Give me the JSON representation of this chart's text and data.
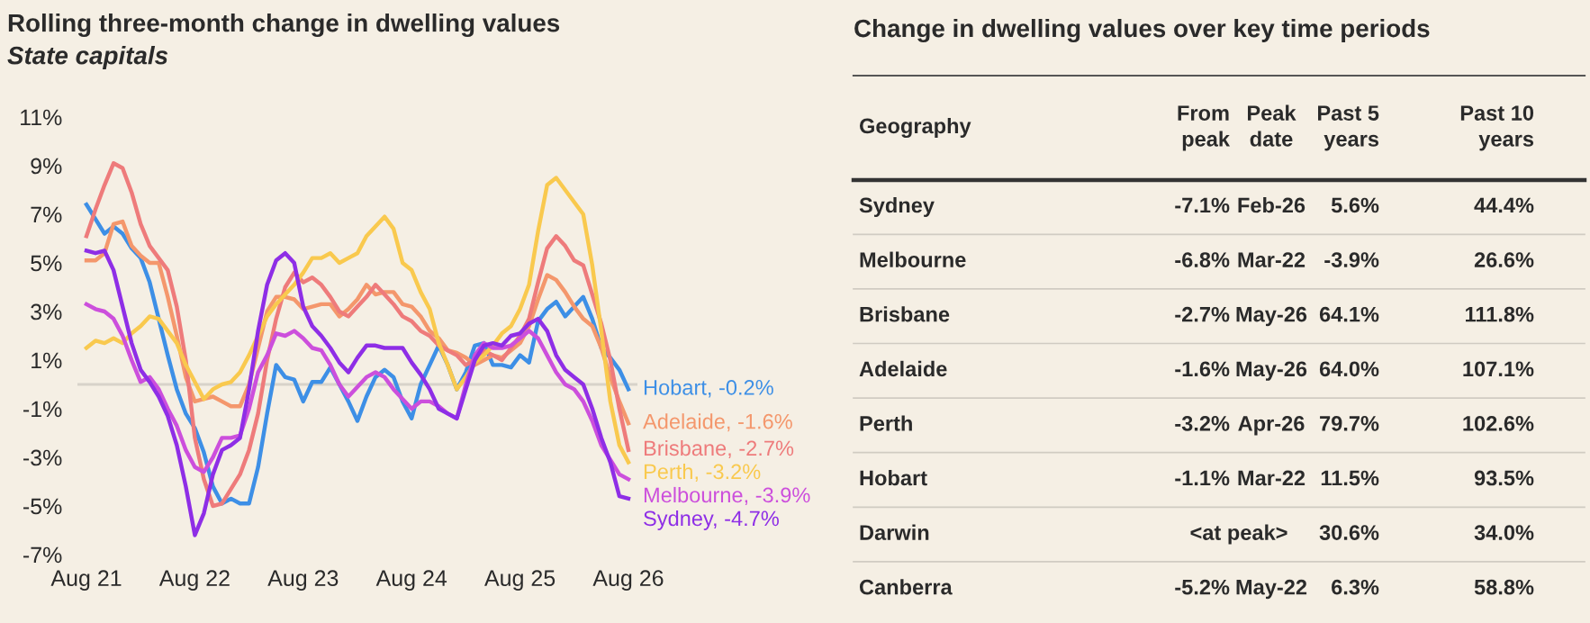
{
  "chart_data": [
    {
      "type": "line",
      "title": "Rolling three-month change in dwelling values",
      "subtitle": "State capitals",
      "x": [
        "2021-08",
        "2021-09",
        "2021-10",
        "2021-11",
        "2021-12",
        "2022-01",
        "2022-02",
        "2022-03",
        "2022-04",
        "2022-05",
        "2022-06",
        "2022-07",
        "2022-08",
        "2022-09",
        "2022-10",
        "2022-11",
        "2022-12",
        "2023-01",
        "2023-02",
        "2023-03",
        "2023-04",
        "2023-05",
        "2023-06",
        "2023-07",
        "2023-08",
        "2023-09",
        "2023-10",
        "2023-11",
        "2023-12",
        "2024-01",
        "2024-02",
        "2024-03",
        "2024-04",
        "2024-05",
        "2024-06",
        "2024-07",
        "2024-08",
        "2024-09",
        "2024-10",
        "2024-11",
        "2024-12",
        "2025-01",
        "2025-02",
        "2025-03",
        "2025-04",
        "2025-05",
        "2025-06",
        "2025-07",
        "2025-08",
        "2025-09",
        "2025-10",
        "2025-11",
        "2025-12",
        "2026-01",
        "2026-02",
        "2026-03",
        "2026-04",
        "2026-05",
        "2026-06",
        "2026-07",
        "2026-08"
      ],
      "series": [
        {
          "name": "Hobart, -0.2%",
          "color": "#3d8fe6",
          "values": [
            7.4,
            6.8,
            6.2,
            6.5,
            6.2,
            5.6,
            5.2,
            4.2,
            2.7,
            1.2,
            -0.2,
            -1.2,
            -1.8,
            -2.8,
            -4.2,
            -4.9,
            -4.7,
            -4.9,
            -4.9,
            -3.4,
            -1.2,
            0.8,
            0.3,
            0.2,
            -0.7,
            0.1,
            0.1,
            0.7,
            0.0,
            -0.7,
            -1.5,
            -0.5,
            0.3,
            0.6,
            0.3,
            -0.7,
            -1.4,
            0.0,
            0.8,
            1.6,
            0.8,
            -0.2,
            0.5,
            1.6,
            1.7,
            0.8,
            0.8,
            0.7,
            1.2,
            0.9,
            2.6,
            3.1,
            3.4,
            2.8,
            3.2,
            3.6,
            2.7,
            1.5,
            1.1,
            0.6,
            -0.2
          ]
        },
        {
          "name": "Adelaide, -1.6%",
          "color": "#f4976c",
          "values": [
            5.1,
            5.1,
            5.4,
            6.6,
            6.7,
            5.7,
            5.3,
            5.0,
            5.0,
            3.6,
            2.0,
            0.3,
            -0.7,
            -0.6,
            -0.5,
            -0.7,
            -0.9,
            -0.9,
            0.0,
            1.5,
            3.0,
            3.6,
            3.6,
            3.5,
            3.1,
            3.2,
            3.3,
            3.3,
            2.8,
            3.1,
            3.5,
            4.1,
            3.7,
            3.8,
            3.8,
            3.3,
            3.2,
            2.8,
            2.2,
            1.9,
            1.4,
            1.3,
            1.1,
            0.8,
            1.0,
            1.2,
            1.1,
            1.4,
            1.7,
            2.4,
            3.5,
            4.5,
            4.3,
            3.8,
            3.2,
            2.7,
            2.4,
            1.5,
            0.3,
            -0.7,
            -1.6
          ]
        },
        {
          "name": "Brisbane, -2.7%",
          "color": "#ee7b7b",
          "values": [
            6.1,
            7.2,
            8.2,
            9.1,
            8.9,
            7.9,
            6.6,
            5.7,
            5.2,
            4.7,
            3.2,
            1.0,
            -2.2,
            -3.9,
            -5.0,
            -4.9,
            -4.3,
            -3.7,
            -2.7,
            -1.2,
            1.0,
            2.7,
            4.0,
            4.6,
            4.2,
            4.4,
            4.1,
            3.6,
            3.0,
            2.8,
            3.2,
            3.6,
            4.1,
            3.7,
            3.3,
            2.8,
            2.6,
            2.2,
            2.0,
            1.6,
            1.4,
            1.2,
            0.8,
            1.0,
            1.4,
            1.2,
            1.0,
            1.5,
            2.0,
            2.7,
            4.2,
            5.6,
            6.1,
            5.7,
            5.1,
            4.9,
            3.7,
            2.5,
            1.0,
            -1.0,
            -2.7
          ]
        },
        {
          "name": "Perth, -3.2%",
          "color": "#f9c94e",
          "values": [
            1.5,
            1.8,
            1.7,
            1.9,
            1.7,
            2.1,
            2.4,
            2.8,
            2.7,
            2.2,
            1.7,
            0.8,
            0.1,
            -0.6,
            -0.2,
            0.0,
            0.1,
            0.5,
            1.2,
            2.0,
            2.8,
            3.3,
            3.7,
            4.1,
            4.6,
            5.2,
            5.2,
            5.4,
            5.0,
            5.2,
            5.4,
            6.1,
            6.5,
            6.9,
            6.4,
            5.0,
            4.7,
            3.8,
            3.1,
            1.7,
            0.8,
            -0.2,
            0.3,
            0.9,
            1.2,
            1.6,
            2.1,
            2.4,
            3.1,
            4.1,
            6.3,
            8.2,
            8.5,
            8.0,
            7.5,
            7.0,
            4.9,
            2.2,
            -0.7,
            -2.5,
            -3.2
          ]
        },
        {
          "name": "Melbourne, -3.9%",
          "color": "#cc4fdc",
          "values": [
            3.3,
            3.1,
            3.0,
            2.7,
            2.0,
            1.0,
            0.1,
            0.3,
            -0.2,
            -1.0,
            -1.7,
            -2.7,
            -3.4,
            -3.6,
            -3.0,
            -2.2,
            -2.2,
            -2.1,
            -1.0,
            0.5,
            1.2,
            2.1,
            2.0,
            2.2,
            1.9,
            1.5,
            1.4,
            0.8,
            0.0,
            -0.5,
            -0.1,
            0.3,
            0.5,
            0.3,
            -0.2,
            -0.6,
            -1.0,
            -0.7,
            -0.7,
            -0.9,
            -1.2,
            -1.4,
            0.0,
            1.2,
            1.7,
            1.5,
            1.5,
            1.6,
            1.9,
            2.2,
            1.9,
            1.2,
            0.5,
            0.0,
            -0.2,
            -0.7,
            -1.5,
            -2.5,
            -3.1,
            -3.7,
            -3.9
          ]
        },
        {
          "name": "Sydney, -4.7%",
          "color": "#8e2ee6",
          "values": [
            5.5,
            5.4,
            5.5,
            4.7,
            3.2,
            1.7,
            0.6,
            0.1,
            -0.5,
            -1.3,
            -2.5,
            -4.2,
            -6.2,
            -5.3,
            -3.7,
            -2.7,
            -2.5,
            -2.2,
            -0.2,
            2.2,
            4.1,
            5.1,
            5.4,
            5.0,
            3.2,
            2.4,
            2.0,
            1.5,
            0.9,
            0.5,
            1.1,
            1.6,
            1.6,
            1.5,
            1.5,
            1.5,
            0.9,
            0.4,
            -0.2,
            -1.0,
            -1.2,
            -1.4,
            -0.2,
            1.0,
            1.6,
            1.7,
            1.6,
            2.0,
            2.1,
            2.5,
            2.7,
            2.2,
            1.2,
            0.6,
            0.3,
            0.0,
            -1.0,
            -2.2,
            -3.2,
            -4.6,
            -4.7
          ]
        }
      ],
      "xlim": [
        "2021-07",
        "2026-09"
      ],
      "xticks": [
        {
          "value": "2021-08",
          "label": "Aug 21"
        },
        {
          "value": "2022-08",
          "label": "Aug 22"
        },
        {
          "value": "2023-08",
          "label": "Aug 23"
        },
        {
          "value": "2024-08",
          "label": "Aug 24"
        },
        {
          "value": "2025-08",
          "label": "Aug 25"
        },
        {
          "value": "2026-08",
          "label": "Aug 26"
        }
      ],
      "ylim": [
        -7,
        11
      ],
      "yticks": [
        {
          "value": 11,
          "label": "11%"
        },
        {
          "value": 9,
          "label": "9%"
        },
        {
          "value": 7,
          "label": "7%"
        },
        {
          "value": 5,
          "label": "5%"
        },
        {
          "value": 3,
          "label": "3%"
        },
        {
          "value": 1,
          "label": "1%"
        },
        {
          "value": -1,
          "label": "-1%"
        },
        {
          "value": -3,
          "label": "-3%"
        },
        {
          "value": -5,
          "label": "-5%"
        },
        {
          "value": -7,
          "label": "-7%"
        }
      ],
      "ref_lines": [
        {
          "axis": "y",
          "value": 0,
          "color": "#d8d3ca"
        }
      ],
      "grid": false,
      "legend": false,
      "marker": "none",
      "line_style": "solid"
    },
    {
      "type": "other",
      "title": "Change in dwelling values over key time periods",
      "categories": [
        "Geography",
        "From\npeak",
        "Peak\ndate",
        "Past 5\nyears",
        "Past 10\nyears"
      ],
      "y_categories": [
        "Sydney",
        "Melbourne",
        "Brisbane",
        "Adelaide",
        "Perth",
        "Hobart",
        "Darwin",
        "Canberra"
      ],
      "cell_labels": [
        [
          "-7.1%",
          "Feb-26",
          "5.6%",
          "44.4%"
        ],
        [
          "-6.8%",
          "Mar-22",
          "-3.9%",
          "26.6%"
        ],
        [
          "-2.7%",
          "May-26",
          "64.1%",
          "111.8%"
        ],
        [
          "-1.6%",
          "May-26",
          "64.0%",
          "107.1%"
        ],
        [
          "-3.2%",
          "Apr-26",
          "79.7%",
          "102.6%"
        ],
        [
          "-1.1%",
          "Mar-22",
          "11.5%",
          "93.5%"
        ],
        [
          "<at peak>",
          null,
          "30.6%",
          "34.0%"
        ],
        [
          "-5.2%",
          "May-22",
          "6.3%",
          "58.8%"
        ]
      ]
    }
  ]
}
